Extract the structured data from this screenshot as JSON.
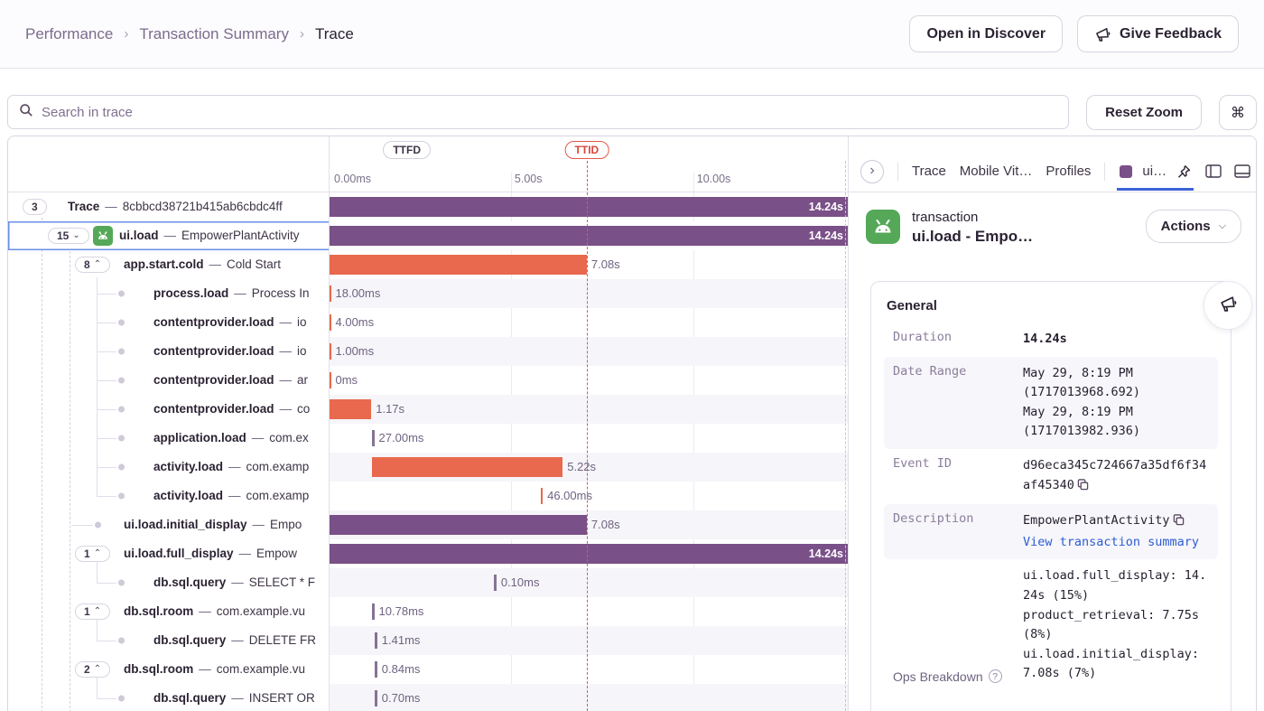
{
  "breadcrumb": {
    "items": [
      "Performance",
      "Transaction Summary",
      "Trace"
    ],
    "separator": "›"
  },
  "topbar": {
    "open_in_discover": "Open in Discover",
    "give_feedback": "Give Feedback"
  },
  "toolbar": {
    "search_placeholder": "Search in trace",
    "reset_zoom_label": "Reset Zoom",
    "shortcut_glyph": "⌘"
  },
  "timeline": {
    "ttid_label": "TTID",
    "ttfd_label": "TTFD",
    "total_duration_s": 14.24,
    "ttid_s": 7.08,
    "ticks": [
      {
        "label": "0.00ms",
        "s": 0
      },
      {
        "label": "5.00s",
        "s": 5
      },
      {
        "label": "10.00s",
        "s": 10
      }
    ]
  },
  "tree_separator": "—",
  "rows": [
    {
      "indent": 0,
      "pill": "3",
      "chevron": null,
      "op": "Trace",
      "desc": "8cbbcd38721b415ab6cbdc4ff",
      "bar": {
        "color": "purple",
        "start_s": 0,
        "duration_s": 14.24,
        "label": "14.24s",
        "label_inside": true
      }
    },
    {
      "indent": 1,
      "pill": "15",
      "chevron": "down",
      "icon": "android",
      "selected": true,
      "op": "ui.load",
      "desc": "EmpowerPlantActivity",
      "bar": {
        "color": "purple",
        "start_s": 0,
        "duration_s": 14.24,
        "label": "14.24s",
        "label_inside": true
      }
    },
    {
      "indent": 2,
      "pill": "8",
      "chevron": "up",
      "op": "app.start.cold",
      "desc": "Cold Start",
      "bar": {
        "color": "orange",
        "start_s": 0,
        "duration_s": 7.08,
        "label": "7.08s",
        "label_inside": false
      }
    },
    {
      "indent": 3,
      "dot": true,
      "op": "process.load",
      "desc": "Process In",
      "bar": {
        "color": "orange",
        "start_s": 0,
        "duration_s": 0.018,
        "label": "18.00ms",
        "label_inside": false
      }
    },
    {
      "indent": 3,
      "dot": true,
      "op": "contentprovider.load",
      "desc": "io",
      "bar": {
        "color": "orange",
        "start_s": 0,
        "duration_s": 0.004,
        "label": "4.00ms",
        "label_inside": false
      }
    },
    {
      "indent": 3,
      "dot": true,
      "op": "contentprovider.load",
      "desc": "io",
      "bar": {
        "color": "orange",
        "start_s": 0,
        "duration_s": 0.001,
        "label": "1.00ms",
        "label_inside": false
      }
    },
    {
      "indent": 3,
      "dot": true,
      "op": "contentprovider.load",
      "desc": "ar",
      "bar": {
        "color": "orange",
        "start_s": 0,
        "duration_s": 0,
        "label": "0ms",
        "label_inside": false
      }
    },
    {
      "indent": 3,
      "dot": true,
      "op": "contentprovider.load",
      "desc": "co",
      "bar": {
        "color": "orange",
        "start_s": 0,
        "duration_s": 1.17,
        "label": "1.17s",
        "label_inside": false
      }
    },
    {
      "indent": 3,
      "dot": true,
      "op": "application.load",
      "desc": "com.ex",
      "bar": {
        "color": "muted",
        "start_s": 1.19,
        "duration_s": 0.027,
        "label": "27.00ms",
        "label_inside": false
      }
    },
    {
      "indent": 3,
      "dot": true,
      "op": "activity.load",
      "desc": "com.examp",
      "bar": {
        "color": "orange",
        "start_s": 1.2,
        "duration_s": 5.22,
        "label": "5.22s",
        "label_inside": false
      }
    },
    {
      "indent": 3,
      "dot": true,
      "op": "activity.load",
      "desc": "com.examp",
      "bar": {
        "color": "orange",
        "start_s": 5.81,
        "duration_s": 0.046,
        "label": "46.00ms",
        "label_inside": false
      }
    },
    {
      "indent": 2,
      "dot": true,
      "op": "ui.load.initial_display",
      "desc": "Empo",
      "bar": {
        "color": "purple",
        "start_s": 0,
        "duration_s": 7.08,
        "label": "7.08s",
        "label_inside": false
      }
    },
    {
      "indent": 2,
      "pill": "1",
      "chevron": "up",
      "op": "ui.load.full_display",
      "desc": "Empow",
      "bar": {
        "color": "purple",
        "start_s": 0,
        "duration_s": 14.24,
        "label": "14.24s",
        "label_inside": true
      }
    },
    {
      "indent": 3,
      "dot": true,
      "op": "db.sql.query",
      "desc": "SELECT * F",
      "bar": {
        "color": "muted",
        "start_s": 4.54,
        "duration_s": 0.0001,
        "label": "0.10ms",
        "label_inside": false
      }
    },
    {
      "indent": 2,
      "pill": "1",
      "chevron": "up",
      "op": "db.sql.room",
      "desc": "com.example.vu",
      "bar": {
        "color": "muted",
        "start_s": 1.19,
        "duration_s": 0.0108,
        "label": "10.78ms",
        "label_inside": false
      }
    },
    {
      "indent": 3,
      "dot": true,
      "op": "db.sql.query",
      "desc": "DELETE FR",
      "bar": {
        "color": "muted",
        "start_s": 1.27,
        "duration_s": 0.0014,
        "label": "1.41ms",
        "label_inside": false
      }
    },
    {
      "indent": 2,
      "pill": "2",
      "chevron": "up",
      "op": "db.sql.room",
      "desc": "com.example.vu",
      "bar": {
        "color": "muted",
        "start_s": 1.27,
        "duration_s": 0.0008,
        "label": "0.84ms",
        "label_inside": false
      }
    },
    {
      "indent": 3,
      "dot": true,
      "op": "db.sql.query",
      "desc": "INSERT OR",
      "bar": {
        "color": "muted",
        "start_s": 1.27,
        "duration_s": 0.0007,
        "label": "0.70ms",
        "label_inside": false
      }
    }
  ],
  "drawer": {
    "collapse_glyph": "›",
    "tabs": [
      {
        "label": "Trace"
      },
      {
        "label": "Mobile Vit…"
      },
      {
        "label": "Profiles"
      }
    ],
    "active_tab": {
      "label": "ui…"
    },
    "transaction": {
      "type_label": "transaction",
      "title": "ui.load - Empo…",
      "actions_label": "Actions"
    },
    "general": {
      "title": "General",
      "fields": [
        {
          "key": "Duration",
          "shade": false,
          "lines": [
            {
              "text": "14.24s",
              "style": "bold"
            }
          ]
        },
        {
          "key": "Date Range",
          "shade": true,
          "lines": [
            {
              "text": "May 29, 8:19 PM"
            },
            {
              "text": "(1717013968.692)"
            },
            {
              "text": "May 29, 8:19 PM"
            },
            {
              "text": "(1717013982.936)"
            }
          ]
        },
        {
          "key": "Event ID",
          "shade": false,
          "lines": [
            {
              "text": "d96eca345c724667a35df6f34af45340",
              "copy": true
            }
          ]
        },
        {
          "key": "Description",
          "shade": true,
          "lines": [
            {
              "text": "EmpowerPlantActivity",
              "copy": true
            },
            {
              "text": "View transaction summary",
              "style": "link"
            }
          ]
        },
        {
          "key": "Ops Breakdown",
          "help": true,
          "key_sans": true,
          "key_align": "bottom",
          "shade": false,
          "lines": [
            {
              "text": "ui.load.full_display: 14.24s (15%)"
            },
            {
              "text": "product_retrieval: 7.75s (8%)"
            },
            {
              "text": "ui.load.initial_display: 7.08s (7%)"
            }
          ]
        }
      ]
    }
  },
  "colors": {
    "purple_bar": "#7a5088",
    "orange_bar": "#e8694d",
    "muted_bar": "#857394",
    "ttid": "#e4584a",
    "selection": "#6a8fe8",
    "tab_underline": "#3b63d8",
    "android_green": "#55a858"
  }
}
